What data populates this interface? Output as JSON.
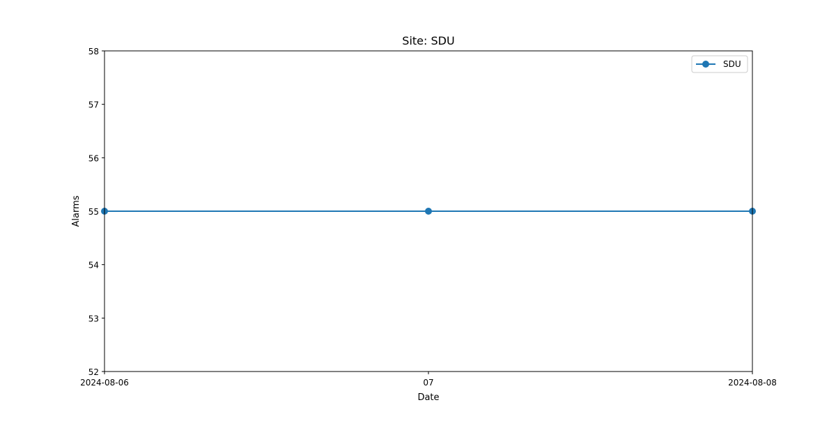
{
  "chart_data": {
    "type": "line",
    "title": "Site: SDU",
    "xlabel": "Date",
    "ylabel": "Alarms",
    "x": [
      "2024-08-06",
      "2024-08-07",
      "2024-08-08"
    ],
    "x_tick_labels": [
      "2024-08-06",
      "07",
      "2024-08-08"
    ],
    "ylim": [
      52,
      58
    ],
    "y_ticks": [
      52,
      53,
      54,
      55,
      56,
      57,
      58
    ],
    "grid": false,
    "legend_position": "top-right",
    "series": [
      {
        "name": "SDU",
        "values": [
          55,
          55,
          55
        ],
        "color": "#1f77b4",
        "marker": "circle"
      }
    ]
  }
}
